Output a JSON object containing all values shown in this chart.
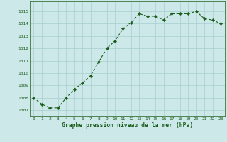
{
  "x": [
    0,
    1,
    2,
    3,
    4,
    5,
    6,
    7,
    8,
    9,
    10,
    11,
    12,
    13,
    14,
    15,
    16,
    17,
    18,
    19,
    20,
    21,
    22,
    23
  ],
  "y": [
    1008.0,
    1007.5,
    1007.2,
    1007.2,
    1008.0,
    1008.7,
    1009.2,
    1009.8,
    1010.9,
    1012.0,
    1012.6,
    1013.6,
    1014.1,
    1014.8,
    1014.6,
    1014.6,
    1014.3,
    1014.8,
    1014.8,
    1014.8,
    1015.0,
    1014.4,
    1014.3,
    1014.0
  ],
  "line_color": "#1a5c1a",
  "marker": "D",
  "marker_size": 2.2,
  "line_width": 0.8,
  "bg_color": "#cce8e8",
  "grid_color": "#a8cece",
  "xlabel": "Graphe pression niveau de la mer (hPa)",
  "xlabel_color": "#1a5c1a",
  "ylim": [
    1006.5,
    1015.8
  ],
  "yticks": [
    1007,
    1008,
    1009,
    1010,
    1011,
    1012,
    1013,
    1014,
    1015
  ],
  "xticks": [
    0,
    1,
    2,
    3,
    4,
    5,
    6,
    7,
    8,
    9,
    10,
    11,
    12,
    13,
    14,
    15,
    16,
    17,
    18,
    19,
    20,
    21,
    22,
    23
  ],
  "tick_fontsize": 4.5,
  "label_fontsize": 5.8,
  "xlim_left": -0.5,
  "xlim_right": 23.5
}
